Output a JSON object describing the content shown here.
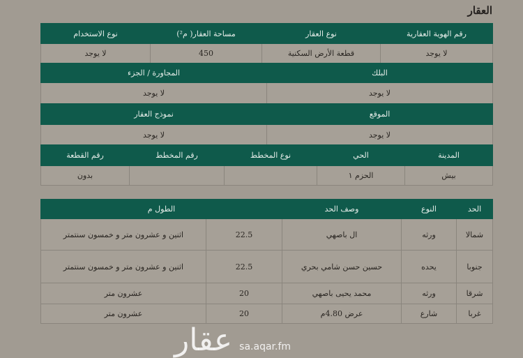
{
  "section_title": "العقار",
  "property": {
    "row1": {
      "headers": [
        "رقم الهوية العقارية",
        "نوع العقار",
        "مساحة العقار( م²)",
        "نوع الاستخدام"
      ],
      "values": [
        "لا يوجد",
        "قطعة الأرض السكنية",
        "450",
        "لا يوجد"
      ]
    },
    "row2": {
      "headers": [
        "البلك",
        "المجاورة / الجزء"
      ],
      "values": [
        "لا يوجد",
        "لا يوجد"
      ]
    },
    "row3": {
      "headers": [
        "الموقع",
        "نموذج العقار"
      ],
      "values": [
        "لا يوجد",
        "لا يوجد"
      ]
    },
    "row4": {
      "headers": [
        "المدينة",
        "الحي",
        "نوع المخطط",
        "رقم المخطط",
        "رقم القطعة"
      ],
      "values": [
        "بيش",
        "الحزم ١",
        "",
        "",
        "بدون"
      ]
    }
  },
  "boundaries": {
    "headers": [
      "الحد",
      "النوع",
      "وصف الحد",
      "الطول م"
    ],
    "rows": [
      {
        "side": "شمالا",
        "type": "ورثه",
        "description": "ال باصهي",
        "length": "22.5",
        "length_text": "اثنين و عشرون متر و خمسون سنتمتر"
      },
      {
        "side": "جنوبا",
        "type": "يحده",
        "description": "حسين حسن شامي بحري",
        "length": "22.5",
        "length_text": "اثنين و عشرون متر و خمسون سنتمتر"
      },
      {
        "side": "شرقا",
        "type": "ورثه",
        "description": "محمد يحيى باصهي",
        "length": "20",
        "length_text": "عشرون متر"
      },
      {
        "side": "غربا",
        "type": "شارع",
        "description": "عرض 4.80م",
        "length": "20",
        "length_text": "عشرون متر"
      }
    ]
  },
  "watermark": {
    "logo_text": "عقار",
    "url": "sa.aqar.fm"
  },
  "colors": {
    "header_green": "#0f5a4b",
    "paper": "#a19b92"
  }
}
